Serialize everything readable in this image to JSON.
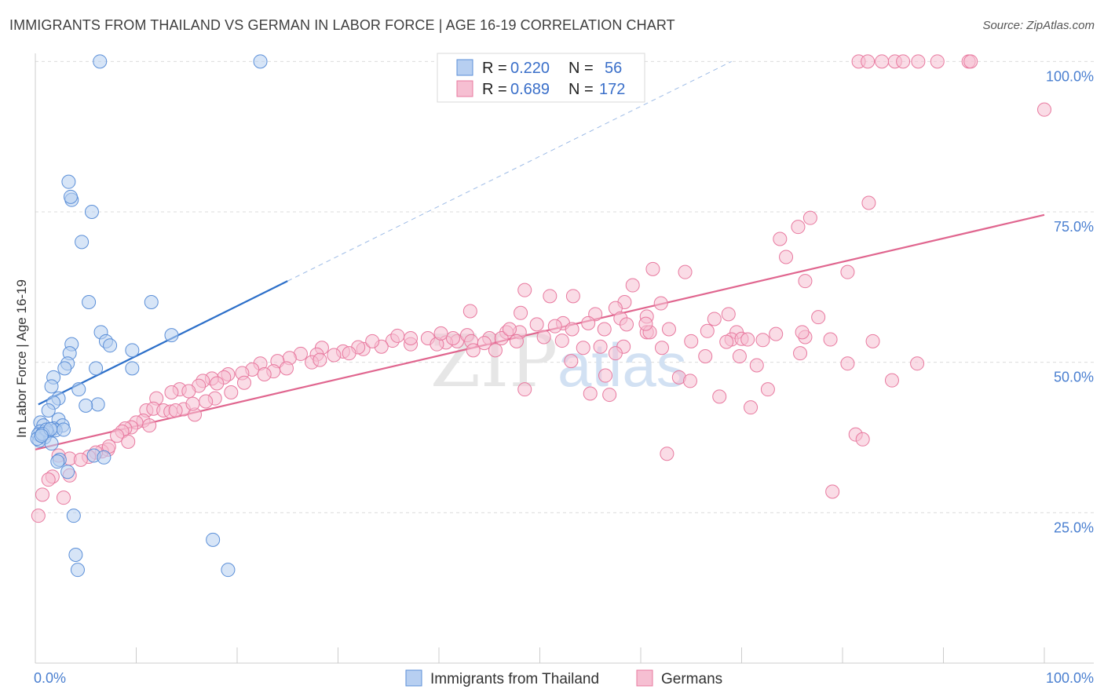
{
  "title": "IMMIGRANTS FROM THAILAND VS GERMAN IN LABOR FORCE | AGE 16-19 CORRELATION CHART",
  "source": "Source: ZipAtlas.com",
  "watermark": {
    "zip": "ZIP",
    "atlas": "atlas"
  },
  "colors": {
    "blue": "#5b8fd8",
    "blue_fill": "#b7cff1",
    "pink": "#e8799f",
    "pink_fill": "#f6bfd2",
    "blue_line": "#2c6fc9",
    "pink_line": "#e0668f"
  },
  "chart_data": {
    "type": "scatter",
    "ylabel": "In Labor Force | Age 16-19",
    "xlim": [
      0,
      100
    ],
    "ylim": [
      0,
      105
    ],
    "x_tick_labels": [
      "0.0%",
      "100.0%"
    ],
    "y_ticks": [
      {
        "value": 100,
        "label": "100.0%"
      },
      {
        "value": 75,
        "label": "75.0%"
      },
      {
        "value": 50,
        "label": "50.0%"
      },
      {
        "value": 25,
        "label": "25.0%"
      }
    ],
    "legend": [
      {
        "r_label": "R =",
        "r": "0.220",
        "n_label": "N =",
        "n": "56"
      },
      {
        "r_label": "R =",
        "r": "0.689",
        "n_label": "N =",
        "n": "172"
      }
    ],
    "series": [
      {
        "name": "Immigrants from Thailand",
        "trend": {
          "x": [
            0.3,
            25
          ],
          "y": [
            43,
            63.5
          ],
          "extended_to": [
            69,
            100
          ]
        },
        "points": [
          [
            6.4,
            100
          ],
          [
            22.3,
            100
          ],
          [
            3.3,
            80
          ],
          [
            3.6,
            77
          ],
          [
            3.5,
            77.5
          ],
          [
            5.6,
            75
          ],
          [
            4.6,
            70
          ],
          [
            5.3,
            60
          ],
          [
            11.5,
            60
          ],
          [
            6.5,
            55
          ],
          [
            3.6,
            53
          ],
          [
            7,
            53.5
          ],
          [
            7.4,
            52.8
          ],
          [
            13.5,
            54.5
          ],
          [
            9.6,
            52
          ],
          [
            3.4,
            51.5
          ],
          [
            3.2,
            49.8
          ],
          [
            2.9,
            49
          ],
          [
            6,
            49
          ],
          [
            9.6,
            49
          ],
          [
            1.8,
            47.5
          ],
          [
            1.6,
            46
          ],
          [
            4.3,
            45.5
          ],
          [
            2.3,
            44
          ],
          [
            1.8,
            43.3
          ],
          [
            6.2,
            43
          ],
          [
            5,
            42.8
          ],
          [
            1.3,
            42
          ],
          [
            2.3,
            40.5
          ],
          [
            0.5,
            40
          ],
          [
            0.8,
            39.5
          ],
          [
            2.7,
            39.5
          ],
          [
            1.8,
            39
          ],
          [
            2,
            38.7
          ],
          [
            2.8,
            38.8
          ],
          [
            0.5,
            38.5
          ],
          [
            1.2,
            38.3
          ],
          [
            0.3,
            38
          ],
          [
            0.9,
            37.5
          ],
          [
            0.4,
            37
          ],
          [
            0.2,
            37.3
          ],
          [
            1.6,
            36.5
          ],
          [
            2.4,
            33.8
          ],
          [
            5.8,
            34.5
          ],
          [
            6.8,
            34.2
          ],
          [
            3.2,
            31.8
          ],
          [
            3.8,
            24.5
          ],
          [
            4,
            18
          ],
          [
            4.2,
            15.5
          ],
          [
            17.6,
            20.5
          ],
          [
            19.1,
            15.5
          ],
          [
            2.2,
            33.5
          ],
          [
            1.1,
            38.8
          ],
          [
            0.7,
            38.1
          ],
          [
            1.5,
            38.9
          ],
          [
            0.6,
            37.8
          ]
        ]
      },
      {
        "name": "Germans",
        "trend": {
          "x": [
            0,
            100
          ],
          "y": [
            35.5,
            74.5
          ]
        },
        "points": [
          [
            81.6,
            100
          ],
          [
            82.5,
            100
          ],
          [
            83.9,
            100
          ],
          [
            85.2,
            100
          ],
          [
            86,
            100
          ],
          [
            87.5,
            100
          ],
          [
            89.4,
            100
          ],
          [
            92.5,
            100
          ],
          [
            92.7,
            100
          ],
          [
            100,
            92
          ],
          [
            82.6,
            76.5
          ],
          [
            76.8,
            74
          ],
          [
            75.6,
            72.5
          ],
          [
            73.8,
            70.5
          ],
          [
            74.4,
            67.5
          ],
          [
            61.2,
            65.5
          ],
          [
            64.4,
            65
          ],
          [
            80.5,
            65
          ],
          [
            76.3,
            63.5
          ],
          [
            59.2,
            62.8
          ],
          [
            48.5,
            62
          ],
          [
            51,
            61
          ],
          [
            53.3,
            61
          ],
          [
            58.4,
            60
          ],
          [
            62,
            59.8
          ],
          [
            43.1,
            58.5
          ],
          [
            57.5,
            59
          ],
          [
            55.5,
            58
          ],
          [
            48.1,
            58.2
          ],
          [
            68.7,
            58
          ],
          [
            60.6,
            57.6
          ],
          [
            67.3,
            57.2
          ],
          [
            58,
            57.3
          ],
          [
            77.6,
            57.5
          ],
          [
            49.7,
            56.3
          ],
          [
            52.3,
            56.5
          ],
          [
            54.8,
            56.5
          ],
          [
            51.5,
            56
          ],
          [
            58.6,
            56.3
          ],
          [
            53.2,
            55.5
          ],
          [
            56.4,
            55.5
          ],
          [
            60.6,
            55
          ],
          [
            62.8,
            55.5
          ],
          [
            66.6,
            55.2
          ],
          [
            69.5,
            55
          ],
          [
            73.4,
            54.7
          ],
          [
            76.3,
            54.2
          ],
          [
            46.7,
            55
          ],
          [
            48,
            55
          ],
          [
            50.4,
            54.2
          ],
          [
            38.9,
            54
          ],
          [
            41.8,
            53.5
          ],
          [
            42.8,
            54.5
          ],
          [
            43.2,
            53.5
          ],
          [
            45,
            54
          ],
          [
            46.2,
            54
          ],
          [
            47.7,
            53.5
          ],
          [
            40.7,
            53.3
          ],
          [
            69,
            53.8
          ],
          [
            70,
            53.9
          ],
          [
            70.6,
            53.8
          ],
          [
            72.1,
            53.7
          ],
          [
            65,
            53.5
          ],
          [
            68.5,
            53.4
          ],
          [
            60.9,
            55
          ],
          [
            62.1,
            52.4
          ],
          [
            56,
            52.6
          ],
          [
            37.2,
            53
          ],
          [
            35.4,
            53.6
          ],
          [
            34.3,
            52.6
          ],
          [
            32.5,
            52.2
          ],
          [
            30.5,
            51.8
          ],
          [
            28.4,
            52.4
          ],
          [
            27.9,
            51.3
          ],
          [
            29.6,
            51.2
          ],
          [
            26.3,
            51.4
          ],
          [
            25.2,
            50.7
          ],
          [
            24,
            50.2
          ],
          [
            22.3,
            49.8
          ],
          [
            21.5,
            48.8
          ],
          [
            20.5,
            48.2
          ],
          [
            19.1,
            48
          ],
          [
            18.7,
            47.5
          ],
          [
            17.5,
            47.3
          ],
          [
            16.6,
            46.9
          ],
          [
            18,
            46.5
          ],
          [
            16.2,
            46.1
          ],
          [
            14.3,
            45.5
          ],
          [
            15.2,
            45.2
          ],
          [
            13.5,
            45
          ],
          [
            12,
            44
          ],
          [
            11,
            42
          ],
          [
            11.7,
            42.3
          ],
          [
            12.7,
            42
          ],
          [
            13.4,
            41.8
          ],
          [
            14.7,
            42.2
          ],
          [
            13.9,
            42
          ],
          [
            15.8,
            41.3
          ],
          [
            10.7,
            40.3
          ],
          [
            10,
            40
          ],
          [
            9.5,
            39.2
          ],
          [
            8.9,
            39
          ],
          [
            11.3,
            39.5
          ],
          [
            8.6,
            38.5
          ],
          [
            8.1,
            37.8
          ],
          [
            7.2,
            35.5
          ],
          [
            6.6,
            35.2
          ],
          [
            6,
            35
          ],
          [
            5.3,
            34.3
          ],
          [
            3.4,
            34
          ],
          [
            4.5,
            33.8
          ],
          [
            2.3,
            34.5
          ],
          [
            1.7,
            31
          ],
          [
            1.3,
            30.5
          ],
          [
            3.4,
            31.2
          ],
          [
            0.7,
            28
          ],
          [
            2.8,
            27.5
          ],
          [
            0.3,
            24.5
          ],
          [
            43.4,
            52
          ],
          [
            32,
            52.5
          ],
          [
            39.8,
            53
          ],
          [
            41.4,
            54
          ],
          [
            44.5,
            53.2
          ],
          [
            40.2,
            54.8
          ],
          [
            60.5,
            56.4
          ],
          [
            78.8,
            53.8
          ],
          [
            66.4,
            51
          ],
          [
            58.3,
            52.6
          ],
          [
            54.3,
            52.4
          ],
          [
            69.8,
            51
          ],
          [
            71.5,
            49.5
          ],
          [
            75.8,
            51.5
          ],
          [
            72.6,
            45.5
          ],
          [
            76,
            55
          ],
          [
            80.5,
            49.8
          ],
          [
            87.4,
            49.8
          ],
          [
            63.8,
            47.5
          ],
          [
            64.9,
            46.9
          ],
          [
            67.8,
            44.3
          ],
          [
            56.9,
            44.6
          ],
          [
            55,
            44.8
          ],
          [
            48.5,
            45.5
          ],
          [
            70.9,
            42.5
          ],
          [
            62.6,
            34.8
          ],
          [
            81.3,
            38
          ],
          [
            82,
            37.2
          ],
          [
            79,
            28.5
          ],
          [
            84.9,
            47
          ],
          [
            83,
            53.5
          ],
          [
            57.5,
            51.5
          ],
          [
            53.1,
            50.2
          ],
          [
            52.2,
            53.6
          ],
          [
            56.5,
            47.8
          ],
          [
            45.6,
            52
          ],
          [
            47,
            55.5
          ],
          [
            37.2,
            54
          ],
          [
            35.9,
            54.4
          ],
          [
            33.4,
            53.5
          ],
          [
            31.1,
            51.5
          ],
          [
            27.4,
            50
          ],
          [
            28.2,
            50.4
          ],
          [
            23.6,
            48.5
          ],
          [
            24.9,
            49
          ],
          [
            22.7,
            48
          ],
          [
            20.7,
            46.6
          ],
          [
            19.4,
            45
          ],
          [
            17.8,
            44
          ],
          [
            16.9,
            43.5
          ],
          [
            15.6,
            43.1
          ],
          [
            9.2,
            36.8
          ],
          [
            7.3,
            36
          ]
        ]
      }
    ]
  }
}
